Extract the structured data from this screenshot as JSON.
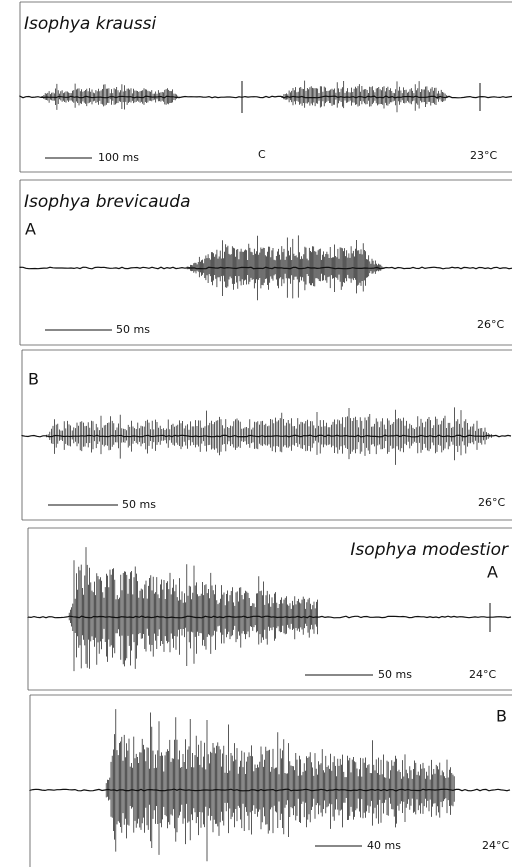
{
  "panels": [
    {
      "title": "Isophya kraussi",
      "mark": "C",
      "scale_bar": "100 ms",
      "temperature": "23°C"
    },
    {
      "title": "Isophya brevicauda",
      "label": "A",
      "scale_bar": "50 ms",
      "temperature": "26°C"
    },
    {
      "label": "B",
      "scale_bar": "50 ms",
      "temperature": "26°C"
    },
    {
      "title": "Isophya modestior",
      "label": "A",
      "scale_bar": "50 ms",
      "temperature": "24°C"
    },
    {
      "label": "B",
      "scale_bar": "40 ms",
      "temperature": "24°C"
    }
  ]
}
